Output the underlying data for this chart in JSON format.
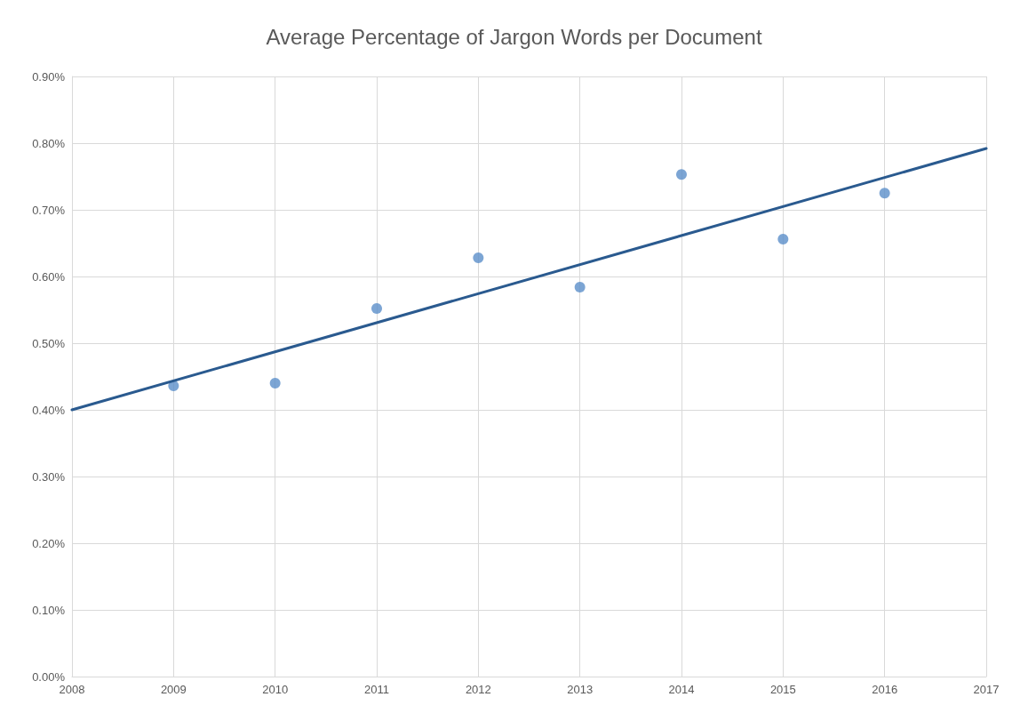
{
  "chart_data": {
    "type": "scatter",
    "title": "Average Percentage of Jargon Words per Document",
    "x": [
      2009,
      2010,
      2011,
      2012,
      2013,
      2014,
      2015,
      2016
    ],
    "series": [
      {
        "color": "#5b8fc9",
        "marker": "circle",
        "values": [
          0.436,
          0.44,
          0.552,
          0.628,
          0.584,
          0.753,
          0.656,
          0.725
        ]
      },
      {
        "type": "line",
        "color": "#2a5a8f",
        "marker": "none",
        "line_style": "solid",
        "x": [
          2008,
          2017
        ],
        "values": [
          0.4,
          0.792
        ]
      }
    ],
    "xlim": [
      2008,
      2017
    ],
    "xticks": [
      2008,
      2009,
      2010,
      2011,
      2012,
      2013,
      2014,
      2015,
      2016,
      2017
    ],
    "ylim": [
      0,
      0.9
    ],
    "yticks": [
      {
        "value": 0,
        "label": "0.00%"
      },
      {
        "value": 0.1,
        "label": "0.10%"
      },
      {
        "value": 0.2,
        "label": "0.20%"
      },
      {
        "value": 0.3,
        "label": "0.30%"
      },
      {
        "value": 0.4,
        "label": "0.40%"
      },
      {
        "value": 0.5,
        "label": "0.50%"
      },
      {
        "value": 0.6,
        "label": "0.60%"
      },
      {
        "value": 0.7,
        "label": "0.70%"
      },
      {
        "value": 0.8,
        "label": "0.80%"
      },
      {
        "value": 0.9,
        "label": "0.90%"
      }
    ],
    "grid": true
  }
}
